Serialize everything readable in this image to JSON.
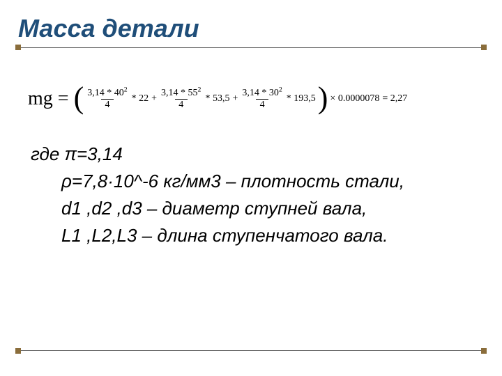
{
  "colors": {
    "title": "#1f4e79",
    "rule": "#5b5b5b",
    "square": "#8a6d3b",
    "text": "#000000",
    "bg": "#ffffff"
  },
  "title": "Масса детали",
  "mg_prefix": "mg =",
  "formula": {
    "terms": [
      {
        "num_base": "3,14 * 40",
        "num_exp": "2",
        "den": "4",
        "mult": "* 22"
      },
      {
        "num_base": "3,14 * 55",
        "num_exp": "2",
        "den": "4",
        "mult": "* 53,5"
      },
      {
        "num_base": "3,14 * 30",
        "num_exp": "2",
        "den": "4",
        "mult": "* 193,5"
      }
    ],
    "tail_mult": "× 0.0000078",
    "tail_eq": "= 2,27"
  },
  "defs": {
    "where": "где   π=3,14",
    "rho": "ρ=7,8·10^-6 кг/мм3 – плотность стали,",
    "d": "d1 ,d2 ,d3 – диаметр ступней вала,",
    "l": "L1 ,L2,L3 – длина ступенчатого вала."
  },
  "fonts": {
    "title_family": "Arial",
    "title_size_pt": 27,
    "body_family": "Arial",
    "body_size_pt": 20,
    "formula_family": "Times New Roman",
    "formula_size_pt": 11
  }
}
